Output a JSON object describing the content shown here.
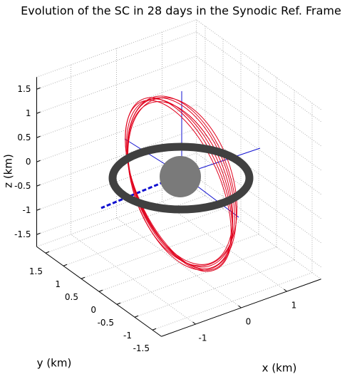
{
  "chart_data": {
    "type": "line3d",
    "title": "Evolution of the SC in 28 days in the Synodic Ref. Frame",
    "xlabel": "x (km)",
    "ylabel": "y (km)",
    "zlabel": "z (km)",
    "xlim": [
      -1.75,
      1.75
    ],
    "ylim": [
      -1.75,
      1.75
    ],
    "zlim": [
      -1.75,
      1.75
    ],
    "xticks": [
      -1,
      0,
      1
    ],
    "yticks": [
      -1.5,
      -1,
      -0.5,
      0,
      0.5,
      1,
      1.5
    ],
    "zticks": [
      -1.5,
      -1,
      -0.5,
      0,
      0.5,
      1,
      1.5
    ],
    "grid": true
  }
}
